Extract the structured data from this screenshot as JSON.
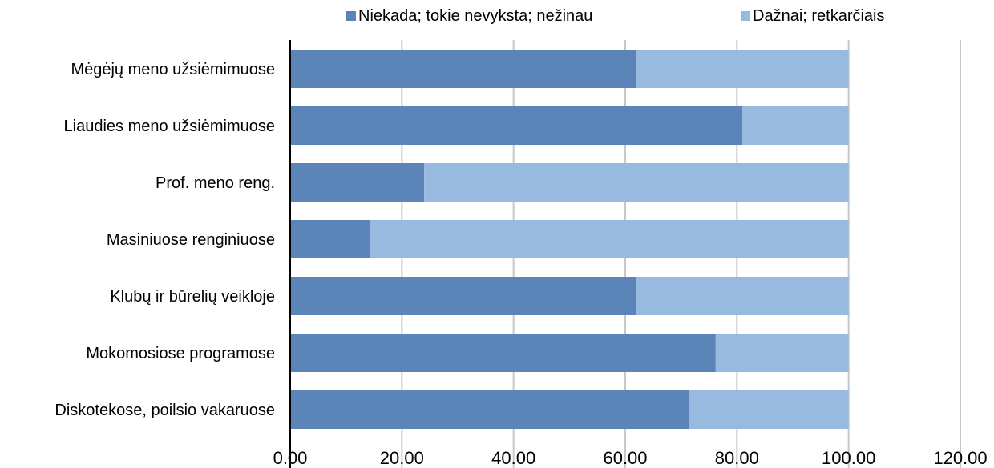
{
  "chart_data": {
    "type": "bar",
    "orientation": "horizontal",
    "stacked": true,
    "title": "",
    "xlabel": "",
    "ylabel": "",
    "categories": [
      "Mėgėjų meno užsiėmimuose",
      "Liaudies meno užsiėmimuose",
      "Prof. meno reng.",
      "Masiniuose renginiuose",
      "Klubų ir būrelių veikloje",
      "Mokomosiose programose",
      "Diskotekose, poilsio vakaruose"
    ],
    "series": [
      {
        "name": "Niekada; tokie nevyksta; nežinau",
        "color": "#5b85b9",
        "values": [
          62.0,
          81.0,
          24.0,
          14.3,
          62.0,
          76.2,
          71.4
        ]
      },
      {
        "name": "Dažnai; retkarčiais",
        "color": "#97bade",
        "values": [
          38.0,
          19.0,
          76.0,
          85.7,
          38.0,
          23.8,
          28.6
        ]
      }
    ],
    "xlim": [
      0,
      120
    ],
    "x_ticks": [
      "0.00",
      "20.00",
      "40.00",
      "60.00",
      "80.00",
      "100.00",
      "120.00"
    ],
    "grid": "vertical",
    "legend_position": "top",
    "colors": {
      "gridline": "#c8c8c8",
      "axis": "#000000",
      "text": "#000000"
    }
  }
}
